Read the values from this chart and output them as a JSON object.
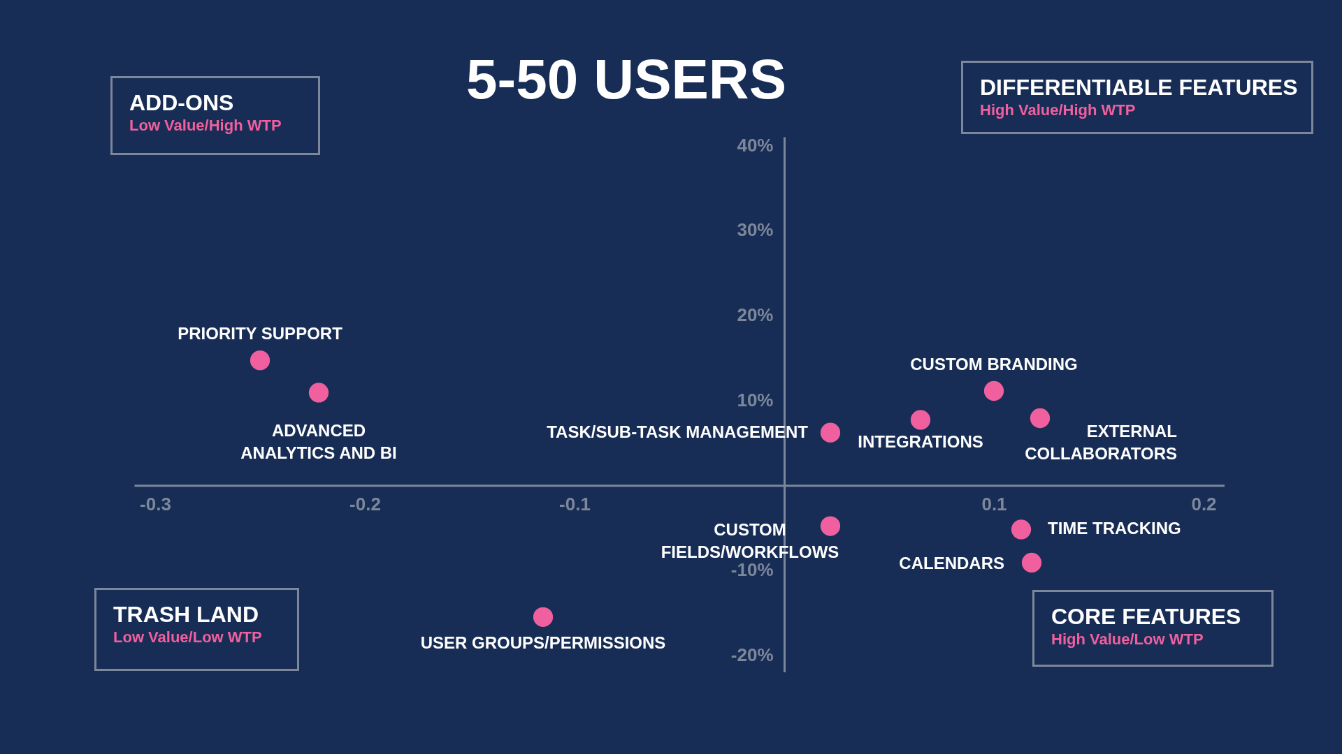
{
  "chart_data": {
    "type": "scatter",
    "title": "5-50 USERS",
    "marker": "circle",
    "xlim": [
      -0.31,
      0.21
    ],
    "xticks": [
      -0.3,
      -0.2,
      -0.1,
      0.1,
      0.2
    ],
    "ylim": [
      -22,
      41
    ],
    "yticks": [
      {
        "value": 40,
        "label": "40%"
      },
      {
        "value": 30,
        "label": "30%"
      },
      {
        "value": 20,
        "label": "20%"
      },
      {
        "value": 10,
        "label": "10%"
      },
      {
        "value": -10,
        "label": "-10%"
      },
      {
        "value": -20,
        "label": "-20%"
      }
    ],
    "series": [
      {
        "name": "PRIORITY SUPPORT",
        "color": "#f0609e",
        "x": [
          -0.25
        ],
        "values": [
          14.7
        ]
      },
      {
        "name": "ADVANCED ANALYTICS AND BI",
        "color": "#f0609e",
        "x": [
          -0.222
        ],
        "values": [
          10.9
        ]
      },
      {
        "name": "TASK/SUB-TASK MANAGEMENT",
        "color": "#f0609e",
        "x": [
          0.022
        ],
        "values": [
          6.2
        ]
      },
      {
        "name": "INTEGRATIONS",
        "color": "#f0609e",
        "x": [
          0.065
        ],
        "values": [
          7.7
        ]
      },
      {
        "name": "CUSTOM BRANDING",
        "color": "#f0609e",
        "x": [
          0.1
        ],
        "values": [
          11.1
        ]
      },
      {
        "name": "EXTERNAL COLLABORATORS",
        "color": "#f0609e",
        "x": [
          0.122
        ],
        "values": [
          7.9
        ]
      },
      {
        "name": "CUSTOM FIELDS/WORKFLOWS",
        "color": "#f0609e",
        "x": [
          0.022
        ],
        "values": [
          -4.8
        ]
      },
      {
        "name": "TIME TRACKING",
        "color": "#f0609e",
        "x": [
          0.113
        ],
        "values": [
          -5.2
        ]
      },
      {
        "name": "CALENDARS",
        "color": "#f0609e",
        "x": [
          0.118
        ],
        "values": [
          -9.1
        ]
      },
      {
        "name": "USER GROUPS/PERMISSIONS",
        "color": "#f0609e",
        "x": [
          -0.115
        ],
        "values": [
          -15.5
        ]
      }
    ],
    "annotations": [
      "ADD-ONS",
      "Low Value/High WTP",
      "DIFFERENTIABLE FEATURES",
      "High Value/High WTP",
      "TRASH LAND",
      "Low Value/Low WTP",
      "CORE FEATURES",
      "High Value/Low WTP"
    ]
  }
}
